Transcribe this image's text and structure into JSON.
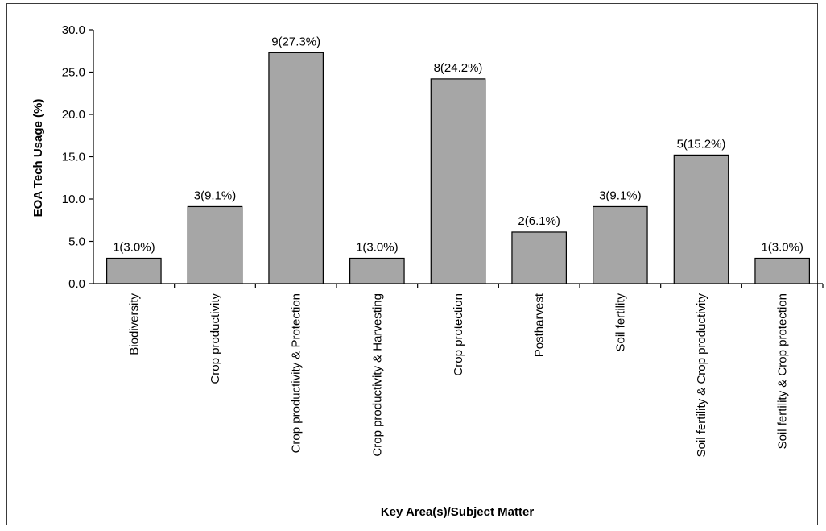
{
  "chart_data": {
    "type": "bar",
    "title": "",
    "xlabel": "Key Area(s)/Subject Matter",
    "ylabel": "EOA Tech Usage (%)",
    "ylim": [
      0,
      30
    ],
    "yticks": [
      "0.0",
      "5.0",
      "10.0",
      "15.0",
      "20.0",
      "25.0",
      "30.0"
    ],
    "grid": false,
    "bar_color": "#a6a6a6",
    "categories": [
      "Biodiversity",
      "Crop productivity",
      "Crop productivity & Protection",
      "Crop productivity & Harvesting",
      "Crop protection",
      "Postharvest",
      "Soil fertility",
      "Soil fertility & Crop productivity",
      "Soil fertility & Crop protection"
    ],
    "values": [
      3.0,
      9.1,
      27.3,
      3.0,
      24.2,
      6.1,
      9.1,
      15.2,
      3.0
    ],
    "data_labels": [
      "1(3.0%)",
      "3(9.1%)",
      "9(27.3%)",
      "1(3.0%)",
      "8(24.2%)",
      "2(6.1%)",
      "3(9.1%)",
      "5(15.2%)",
      "1(3.0%)"
    ]
  }
}
